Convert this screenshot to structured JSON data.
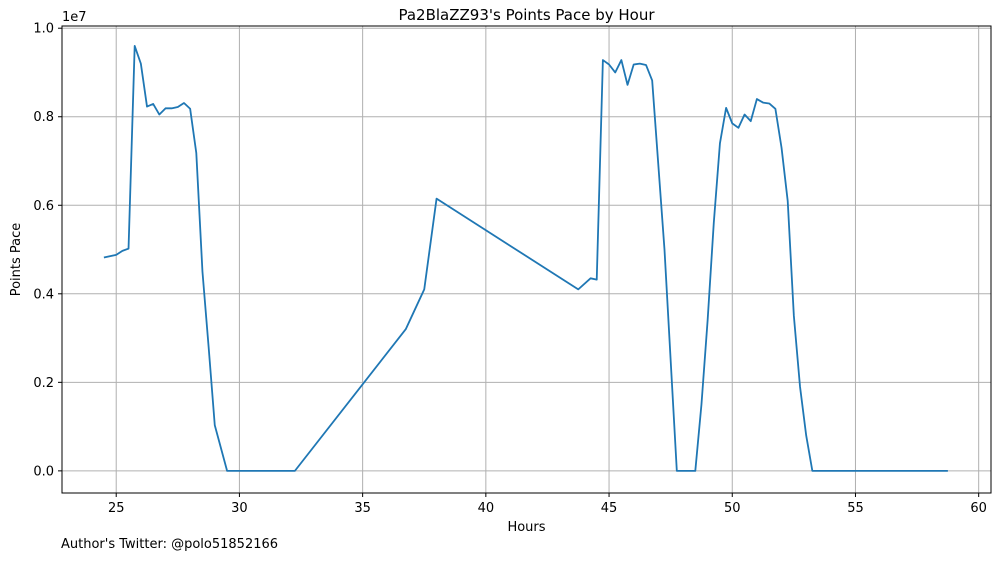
{
  "chart_data": {
    "type": "line",
    "title": "Pa2BlaZZ93's Points Pace by Hour",
    "xlabel": "Hours",
    "ylabel": "Points Pace",
    "y_multiplier": "1e7",
    "xlim": [
      22.8,
      60.5
    ],
    "ylim": [
      -0.05,
      1.005
    ],
    "x_ticks": [
      25,
      30,
      35,
      40,
      45,
      50,
      55,
      60
    ],
    "x_tick_labels": [
      "25",
      "30",
      "35",
      "40",
      "45",
      "50",
      "55",
      "60"
    ],
    "y_ticks": [
      0.0,
      0.2,
      0.4,
      0.6,
      0.8,
      1.0
    ],
    "y_tick_labels": [
      "0.0",
      "0.2",
      "0.4",
      "0.6",
      "0.8",
      "1.0"
    ],
    "grid": true,
    "color": "#1f77b4",
    "series": [
      {
        "x": [
          24.5,
          25.0,
          25.25,
          25.5,
          25.75,
          26.0,
          26.25,
          26.5,
          26.75,
          27.0,
          27.25,
          27.5,
          27.75,
          28.0,
          28.25,
          28.5,
          28.75,
          29.0,
          29.5,
          32.25,
          36.75,
          37.0,
          37.5,
          38.0,
          43.75,
          44.25,
          44.5,
          44.75,
          45.0,
          45.25,
          45.5,
          45.75,
          46.0,
          46.25,
          46.5,
          46.75,
          47.25,
          47.75,
          48.5,
          48.75,
          49.0,
          49.25,
          49.5,
          49.75,
          50.0,
          50.25,
          50.5,
          50.75,
          51.0,
          51.25,
          51.5,
          51.75,
          52.0,
          52.25,
          52.5,
          52.75,
          53.0,
          53.25,
          58.75
        ],
        "y": [
          0.482,
          0.488,
          0.497,
          0.502,
          0.96,
          0.92,
          0.823,
          0.829,
          0.805,
          0.819,
          0.819,
          0.822,
          0.831,
          0.818,
          0.718,
          0.45,
          0.28,
          0.103,
          0.0,
          0.0,
          0.32,
          0.35,
          0.41,
          0.615,
          0.41,
          0.435,
          0.432,
          0.928,
          0.918,
          0.9,
          0.928,
          0.872,
          0.918,
          0.92,
          0.917,
          0.882,
          0.5,
          0.0,
          0.0,
          0.15,
          0.34,
          0.56,
          0.74,
          0.82,
          0.785,
          0.775,
          0.805,
          0.79,
          0.84,
          0.832,
          0.83,
          0.818,
          0.73,
          0.61,
          0.35,
          0.19,
          0.08,
          0.0,
          0.0
        ]
      }
    ]
  },
  "footer": {
    "text": "Author's Twitter: @polo51852166"
  }
}
